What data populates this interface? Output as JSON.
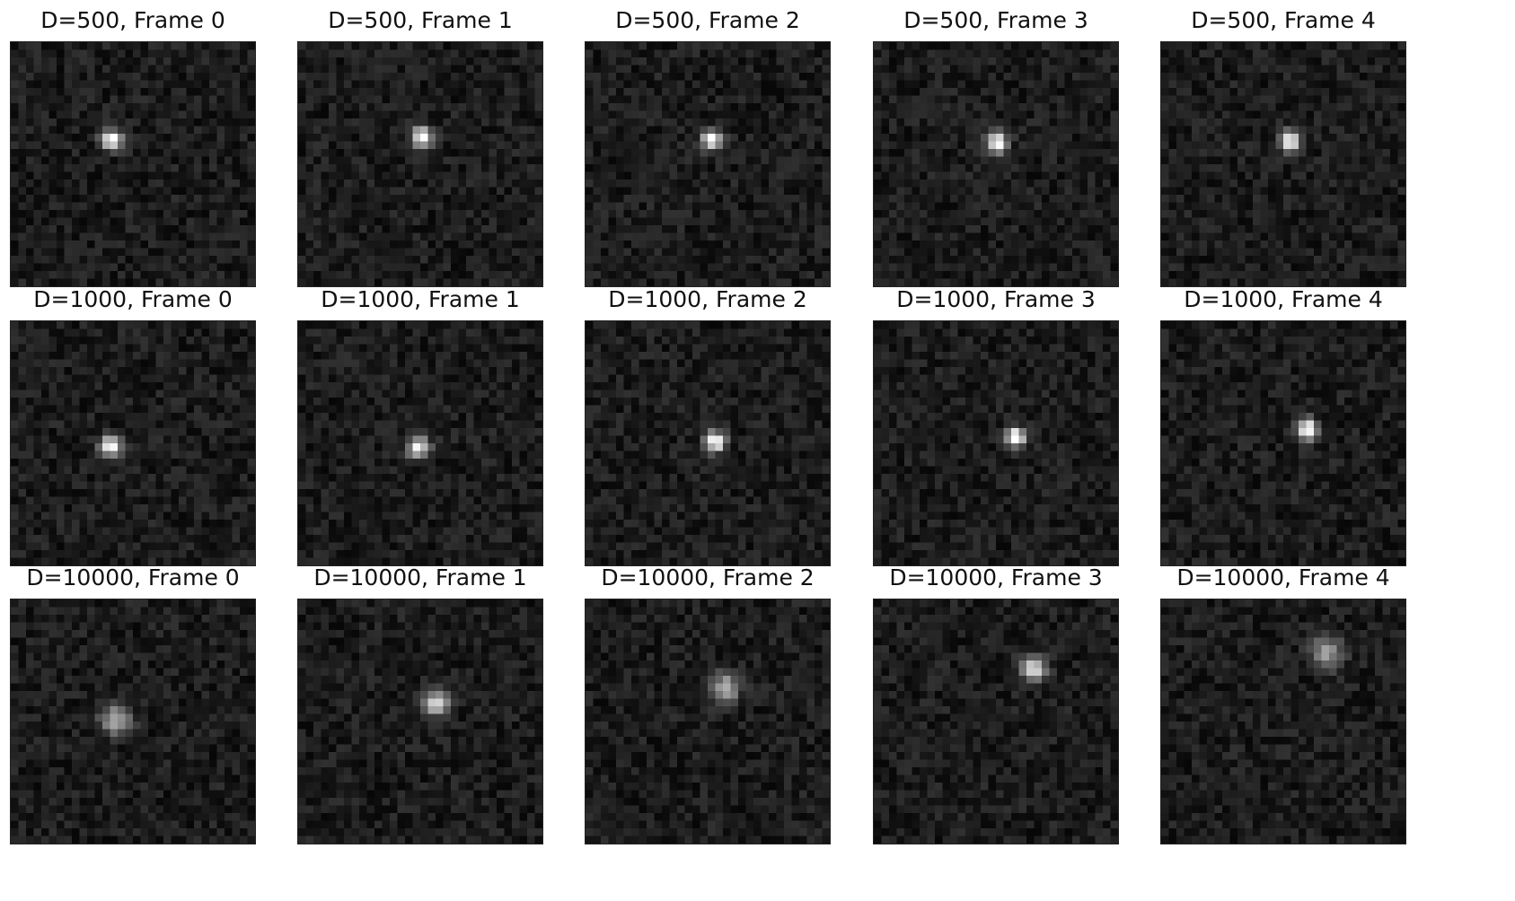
{
  "grid_size": 32,
  "noise_level": 0.14,
  "background_level": 0.11,
  "colors": {
    "background": "#ffffff",
    "frame_border": "#222222",
    "title": "#111111"
  },
  "panels": [
    {
      "title": "D=500, Frame 0",
      "particle": {
        "col": 13.2,
        "row": 12.8
      },
      "spread": 0.9,
      "peak": 1.0
    },
    {
      "title": "D=500, Frame 1",
      "particle": {
        "col": 16.3,
        "row": 12.4
      },
      "spread": 0.9,
      "peak": 1.0
    },
    {
      "title": "D=500, Frame 2",
      "particle": {
        "col": 16.6,
        "row": 12.8
      },
      "spread": 0.9,
      "peak": 1.0
    },
    {
      "title": "D=500, Frame 3",
      "particle": {
        "col": 16.2,
        "row": 13.2
      },
      "spread": 0.9,
      "peak": 1.0
    },
    {
      "title": "D=500, Frame 4",
      "particle": {
        "col": 16.9,
        "row": 13.0
      },
      "spread": 0.9,
      "peak": 1.0
    },
    {
      "title": "D=1000, Frame 0",
      "particle": {
        "col": 13.0,
        "row": 16.4
      },
      "spread": 0.9,
      "peak": 1.0
    },
    {
      "title": "D=1000, Frame 1",
      "particle": {
        "col": 15.8,
        "row": 16.6
      },
      "spread": 1.0,
      "peak": 0.82
    },
    {
      "title": "D=1000, Frame 2",
      "particle": {
        "col": 17.0,
        "row": 15.8
      },
      "spread": 0.9,
      "peak": 1.0
    },
    {
      "title": "D=1000, Frame 3",
      "particle": {
        "col": 18.5,
        "row": 15.2
      },
      "spread": 0.9,
      "peak": 1.0
    },
    {
      "title": "D=1000, Frame 4",
      "particle": {
        "col": 19.2,
        "row": 14.2
      },
      "spread": 0.9,
      "peak": 1.0
    },
    {
      "title": "D=10000, Frame 0",
      "particle": {
        "col": 13.7,
        "row": 15.8
      },
      "spread": 1.3,
      "peak": 0.62
    },
    {
      "title": "D=10000, Frame 1",
      "particle": {
        "col": 18.0,
        "row": 13.6
      },
      "spread": 1.2,
      "peak": 0.72
    },
    {
      "title": "D=10000, Frame 2",
      "particle": {
        "col": 18.3,
        "row": 11.6
      },
      "spread": 1.3,
      "peak": 0.6
    },
    {
      "title": "D=10000, Frame 3",
      "particle": {
        "col": 21.0,
        "row": 9.0
      },
      "spread": 1.1,
      "peak": 0.78
    },
    {
      "title": "D=10000, Frame 4",
      "particle": {
        "col": 21.6,
        "row": 7.0
      },
      "spread": 1.4,
      "peak": 0.55
    }
  ]
}
